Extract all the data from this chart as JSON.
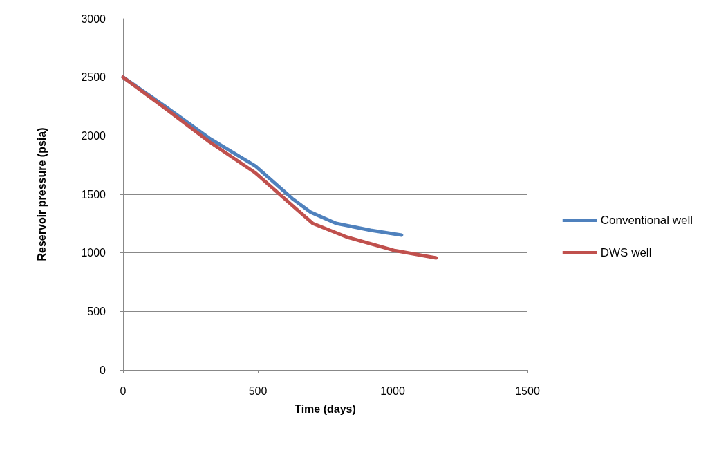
{
  "chart_data": {
    "type": "line",
    "xlabel": "Time (days)",
    "ylabel": "Reservoir pressure (psia)",
    "xlim": [
      0,
      1500
    ],
    "xticks": [
      0,
      500,
      1000,
      1500
    ],
    "ylim": [
      0,
      3000
    ],
    "yticks": [
      0,
      500,
      1000,
      1500,
      2000,
      2500,
      3000
    ],
    "grid": "y",
    "legend": "right",
    "marker": "none",
    "line_style": "solid",
    "series": [
      {
        "name": "Conventional well",
        "color": "#4f81bd",
        "x": [
          0,
          160,
          320,
          491,
          627,
          696,
          790,
          918,
          1033
        ],
        "values": [
          2500,
          2245,
          1979,
          1742,
          1465,
          1347,
          1252,
          1193,
          1152
        ]
      },
      {
        "name": "DWS well",
        "color": "#c0504d",
        "x": [
          0,
          160,
          320,
          491,
          627,
          703,
          831,
          1003,
          1161
        ],
        "values": [
          2500,
          2228,
          1949,
          1683,
          1406,
          1252,
          1134,
          1022,
          957
        ]
      }
    ]
  }
}
